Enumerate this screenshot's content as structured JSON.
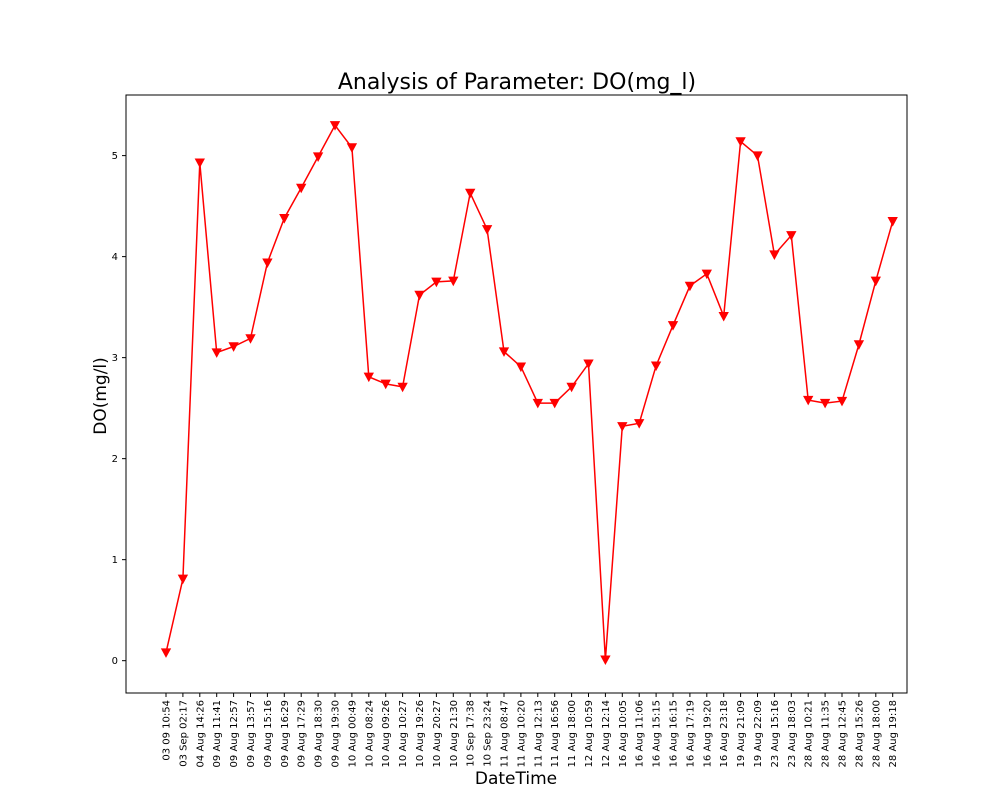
{
  "chart_data": {
    "type": "line",
    "title": "Analysis of Parameter: DO(mg_l)",
    "xlabel": "DateTime",
    "ylabel": "DO(mg/l)",
    "x": [
      "03 09 10:54",
      "03 Sep 02:17",
      "04 Aug 14:26",
      "09 Aug 11:41",
      "09 Aug 12:57",
      "09 Aug 13:57",
      "09 Aug 15:16",
      "09 Aug 16:29",
      "09 Aug 17:29",
      "09 Aug 18:30",
      "09 Aug 19:30",
      "10 Aug 00:49",
      "10 Aug 08:24",
      "10 Aug 09:26",
      "10 Aug 10:27",
      "10 Aug 19:26",
      "10 Aug 20:27",
      "10 Aug 21:30",
      "10 Sep 17:38",
      "10 Sep 23:24",
      "11 Aug 08:47",
      "11 Aug 10:20",
      "11 Aug 12:13",
      "11 Aug 16:56",
      "11 Aug 18:00",
      "12 Aug 10:59",
      "12 Aug 12:14",
      "16 Aug 10:05",
      "16 Aug 11:06",
      "16 Aug 15:15",
      "16 Aug 16:15",
      "16 Aug 17:19",
      "16 Aug 19:20",
      "16 Aug 23:18",
      "19 Aug 21:09",
      "19 Aug 22:09",
      "23 Aug 15:16",
      "23 Aug 18:03",
      "28 Aug 10:21",
      "28 Aug 11:35",
      "28 Aug 12:45",
      "28 Aug 15:26",
      "28 Aug 18:00",
      "28 Aug 19:18"
    ],
    "series": [
      {
        "color": "#ff0000",
        "marker": "triangle-down",
        "values": [
          0.08,
          0.81,
          4.93,
          3.05,
          3.11,
          3.19,
          3.94,
          4.38,
          4.68,
          4.99,
          5.3,
          5.08,
          2.81,
          2.74,
          2.71,
          3.62,
          3.75,
          3.76,
          4.63,
          4.27,
          3.06,
          2.91,
          2.55,
          2.55,
          2.71,
          2.94,
          0.01,
          2.32,
          2.35,
          2.92,
          3.32,
          3.71,
          3.83,
          3.41,
          5.14,
          5.0,
          4.02,
          4.21,
          2.58,
          2.55,
          2.57,
          3.13,
          3.76,
          4.35
        ]
      }
    ],
    "yticks": [
      0,
      1,
      2,
      3,
      4,
      5
    ],
    "ylim": [
      -0.32,
      5.6
    ],
    "grid": false,
    "legend": "none"
  }
}
